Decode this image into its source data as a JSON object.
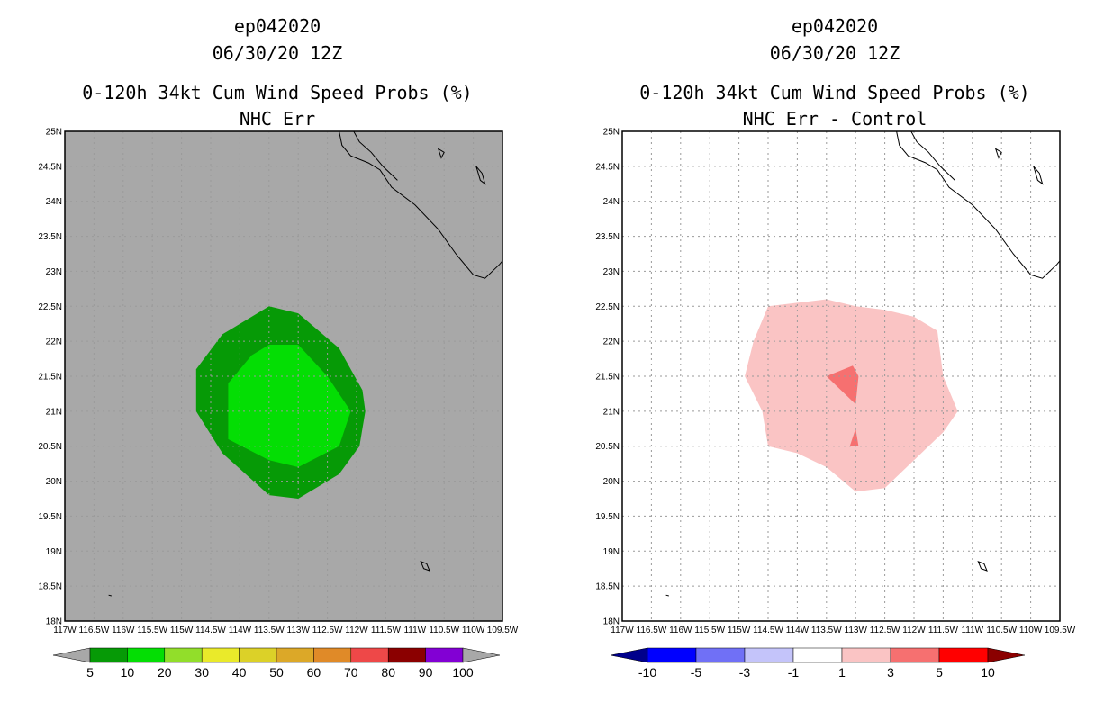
{
  "chart_data": [
    {
      "type": "heatmap",
      "title": [
        "ep042020",
        "06/30/20 12Z",
        "0-120h 34kt Cum Wind Speed Probs (%)",
        "NHC Err"
      ],
      "xlabel": "",
      "ylabel": "",
      "xlim": [
        -117,
        -109.5
      ],
      "ylim": [
        18,
        25
      ],
      "xticks": [
        "117W",
        "116.5W",
        "116W",
        "115.5W",
        "115W",
        "114.5W",
        "114W",
        "113.5W",
        "113W",
        "112.5W",
        "112W",
        "111.5W",
        "111W",
        "110.5W",
        "110W",
        "109.5W"
      ],
      "yticks": [
        "18N",
        "18.5N",
        "19N",
        "19.5N",
        "20N",
        "20.5N",
        "21N",
        "21.5N",
        "22N",
        "22.5N",
        "23N",
        "23.5N",
        "24N",
        "24.5N",
        "25N"
      ],
      "background_color": "#a8a8a8",
      "grid": true,
      "contours": [
        {
          "level": "5-10",
          "color": "#069a06",
          "points": [
            [
              -113.5,
              22.5
            ],
            [
              -113,
              22.4
            ],
            [
              -112.3,
              21.9
            ],
            [
              -111.9,
              21.3
            ],
            [
              -111.85,
              21.0
            ],
            [
              -111.95,
              20.5
            ],
            [
              -112.3,
              20.1
            ],
            [
              -113,
              19.75
            ],
            [
              -113.5,
              19.8
            ],
            [
              -114.3,
              20.4
            ],
            [
              -114.75,
              21.0
            ],
            [
              -114.75,
              21.6
            ],
            [
              -114.3,
              22.1
            ]
          ]
        },
        {
          "level": "10-20",
          "color": "#04de04",
          "points": [
            [
              -113.5,
              21.95
            ],
            [
              -113,
              21.95
            ],
            [
              -112.5,
              21.5
            ],
            [
              -112.1,
              21.0
            ],
            [
              -112.3,
              20.5
            ],
            [
              -113,
              20.2
            ],
            [
              -113.5,
              20.3
            ],
            [
              -114.2,
              20.6
            ],
            [
              -114.2,
              21.4
            ],
            [
              -113.8,
              21.8
            ]
          ]
        }
      ],
      "colorbar": {
        "labels": [
          "5",
          "10",
          "20",
          "30",
          "40",
          "50",
          "60",
          "70",
          "80",
          "90",
          "100"
        ],
        "colors": [
          "#069a06",
          "#04de04",
          "#92de2a",
          "#eaea2a",
          "#dcd128",
          "#dca828",
          "#e08a28",
          "#ee4848",
          "#8b0000",
          "#8200d4"
        ],
        "end_colors": [
          "#a8a8a8",
          "#a8a8a8"
        ]
      }
    },
    {
      "type": "heatmap",
      "title": [
        "ep042020",
        "06/30/20 12Z",
        "0-120h 34kt Cum Wind Speed Probs (%)",
        "NHC Err - Control"
      ],
      "xlabel": "",
      "ylabel": "",
      "xlim": [
        -117,
        -109.5
      ],
      "ylim": [
        18,
        25
      ],
      "xticks": [
        "117W",
        "116.5W",
        "116W",
        "115.5W",
        "115W",
        "114.5W",
        "114W",
        "113.5W",
        "113W",
        "112.5W",
        "112W",
        "111.5W",
        "111W",
        "110.5W",
        "110W",
        "109.5W"
      ],
      "yticks": [
        "18N",
        "18.5N",
        "19N",
        "19.5N",
        "20N",
        "20.5N",
        "21N",
        "21.5N",
        "22N",
        "22.5N",
        "23N",
        "23.5N",
        "24N",
        "24.5N",
        "25N"
      ],
      "background_color": "#ffffff",
      "grid": true,
      "contours": [
        {
          "level": "1-3",
          "color": "#fac4c4",
          "points": [
            [
              -114.5,
              22.5
            ],
            [
              -114,
              22.55
            ],
            [
              -113.5,
              22.6
            ],
            [
              -113,
              22.5
            ],
            [
              -112.5,
              22.45
            ],
            [
              -112,
              22.35
            ],
            [
              -111.6,
              22.15
            ],
            [
              -111.5,
              21.5
            ],
            [
              -111.25,
              21.0
            ],
            [
              -111.5,
              20.7
            ],
            [
              -112,
              20.3
            ],
            [
              -112.5,
              19.9
            ],
            [
              -113,
              19.85
            ],
            [
              -113.5,
              20.2
            ],
            [
              -114,
              20.4
            ],
            [
              -114.5,
              20.5
            ],
            [
              -114.6,
              21.0
            ],
            [
              -114.9,
              21.5
            ],
            [
              -114.75,
              22.0
            ]
          ]
        },
        {
          "level": "3-5",
          "color": "#f67070",
          "points": [
            [
              -113.5,
              21.5
            ],
            [
              -113.05,
              21.65
            ],
            [
              -112.95,
              21.5
            ],
            [
              -113.0,
              21.1
            ]
          ]
        },
        {
          "level": "3-5",
          "color": "#f67070",
          "points": [
            [
              -113.0,
              20.75
            ],
            [
              -112.95,
              20.5
            ],
            [
              -113.1,
              20.5
            ]
          ]
        }
      ],
      "colorbar": {
        "labels": [
          "-10",
          "-5",
          "-3",
          "-1",
          "1",
          "3",
          "5",
          "10"
        ],
        "colors": [
          "#0000ff",
          "#7070f6",
          "#c4c4fa",
          "#ffffff",
          "#fac4c4",
          "#f67070",
          "#ff0000"
        ],
        "end_colors": [
          "#00008b",
          "#8b0000"
        ]
      }
    }
  ]
}
